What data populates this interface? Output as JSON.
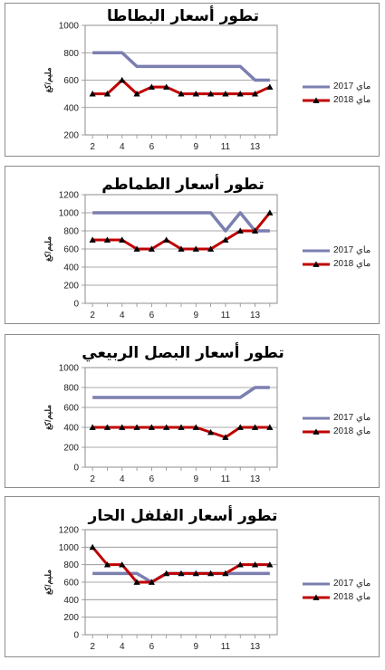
{
  "chart_data": [
    {
      "type": "line",
      "title": "تطور أسعار البطاطا",
      "ylabel": "مليم/كغ",
      "x": [
        2,
        3,
        4,
        5,
        6,
        7,
        8,
        9,
        10,
        11,
        12,
        13,
        14
      ],
      "xticks": [
        2,
        4,
        6,
        9,
        11,
        13
      ],
      "ylim": [
        200,
        1000
      ],
      "yticks": [
        200,
        400,
        600,
        800,
        1000
      ],
      "series": [
        {
          "name": "ماي 2017",
          "values": [
            800,
            800,
            800,
            700,
            700,
            700,
            700,
            700,
            700,
            700,
            700,
            600,
            600
          ],
          "color": "#7b7fb0",
          "markers": false
        },
        {
          "name": "ماي 2018",
          "values": [
            500,
            500,
            600,
            500,
            550,
            550,
            500,
            500,
            500,
            500,
            500,
            500,
            550
          ],
          "color": "#c00000",
          "markers": true
        }
      ]
    },
    {
      "type": "line",
      "title": "تطور أسعار الطماطم",
      "ylabel": "مليم/كغ",
      "x": [
        2,
        3,
        4,
        5,
        6,
        7,
        8,
        9,
        10,
        11,
        12,
        13,
        14
      ],
      "xticks": [
        2,
        4,
        6,
        9,
        11,
        13
      ],
      "ylim": [
        0,
        1200
      ],
      "yticks": [
        0,
        200,
        400,
        600,
        800,
        1000,
        1200
      ],
      "series": [
        {
          "name": "ماي 2017",
          "values": [
            1000,
            1000,
            1000,
            1000,
            1000,
            1000,
            1000,
            1000,
            1000,
            800,
            1000,
            800,
            800
          ],
          "color": "#7b7fb0",
          "markers": false
        },
        {
          "name": "ماي 2018",
          "values": [
            700,
            700,
            700,
            600,
            600,
            700,
            600,
            600,
            600,
            700,
            800,
            800,
            1000
          ],
          "color": "#c00000",
          "markers": true
        }
      ]
    },
    {
      "type": "line",
      "title": "تطور أسعار البصل الربيعي",
      "ylabel": "مليم/كغ",
      "x": [
        2,
        3,
        4,
        5,
        6,
        7,
        8,
        9,
        10,
        11,
        12,
        13,
        14
      ],
      "xticks": [
        2,
        4,
        6,
        9,
        11,
        13
      ],
      "ylim": [
        0,
        1000
      ],
      "yticks": [
        0,
        200,
        400,
        600,
        800,
        1000
      ],
      "series": [
        {
          "name": "ماي 2017",
          "values": [
            700,
            700,
            700,
            700,
            700,
            700,
            700,
            700,
            700,
            700,
            700,
            800,
            800
          ],
          "color": "#7b7fb0",
          "markers": false
        },
        {
          "name": "ماي 2018",
          "values": [
            400,
            400,
            400,
            400,
            400,
            400,
            400,
            400,
            350,
            300,
            400,
            400,
            400
          ],
          "color": "#c00000",
          "markers": true
        }
      ]
    },
    {
      "type": "line",
      "title": "تطور أسعار الفلفل الحار",
      "ylabel": "مليم/كغ",
      "x": [
        2,
        3,
        4,
        5,
        6,
        7,
        8,
        9,
        10,
        11,
        12,
        13,
        14
      ],
      "xticks": [
        2,
        4,
        6,
        9,
        11,
        13
      ],
      "ylim": [
        0,
        1200
      ],
      "yticks": [
        0,
        200,
        400,
        600,
        800,
        1000,
        1200
      ],
      "series": [
        {
          "name": "ماي 2017",
          "values": [
            700,
            700,
            700,
            700,
            600,
            700,
            700,
            700,
            700,
            700,
            700,
            700,
            700
          ],
          "color": "#7b7fb0",
          "markers": false
        },
        {
          "name": "ماي 2018",
          "values": [
            1000,
            800,
            800,
            600,
            600,
            700,
            700,
            700,
            700,
            700,
            800,
            800,
            800
          ],
          "color": "#c00000",
          "markers": true
        }
      ]
    }
  ]
}
